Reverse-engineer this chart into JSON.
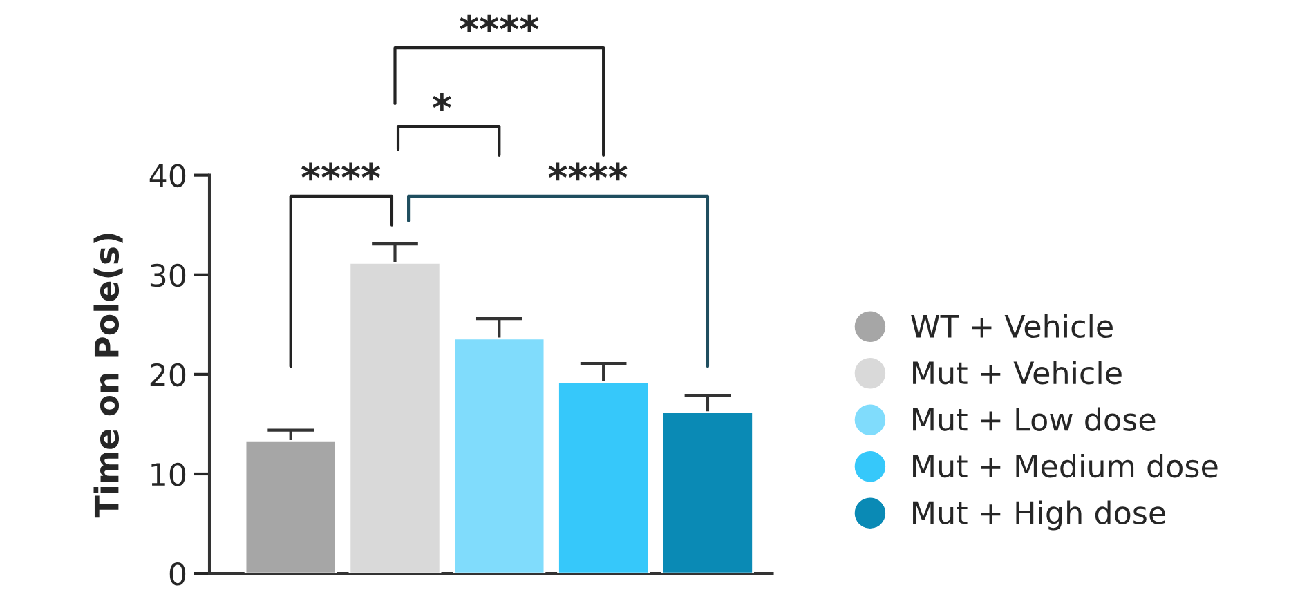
{
  "chart_data": {
    "type": "bar",
    "ylabel": "Time on Pole(s)",
    "categories": [
      null,
      null,
      null,
      null,
      null
    ],
    "series": [
      {
        "name": "WT + Vehicle",
        "color": "#a6a6a6",
        "values": [
          13.3,
          null,
          null,
          null,
          null
        ],
        "errors": [
          1.1,
          null,
          null,
          null,
          null
        ]
      },
      {
        "name": "Mut + Vehicle",
        "color": "#d9d9d9",
        "values": [
          null,
          31.2,
          null,
          null,
          null
        ],
        "errors": [
          null,
          1.9,
          null,
          null,
          null
        ]
      },
      {
        "name": "Mut + Low dose",
        "color": "#80dcfc",
        "values": [
          null,
          null,
          23.6,
          null,
          null
        ],
        "errors": [
          null,
          null,
          2.0,
          null,
          null
        ]
      },
      {
        "name": "Mut + Medium dose",
        "color": "#36c8fa",
        "values": [
          null,
          null,
          null,
          19.2,
          null
        ],
        "errors": [
          null,
          null,
          null,
          1.9,
          null
        ]
      },
      {
        "name": "Mut + High dose",
        "color": "#0a8ab5",
        "values": [
          null,
          null,
          null,
          null,
          16.2
        ],
        "errors": [
          null,
          null,
          null,
          null,
          1.7
        ]
      }
    ],
    "ylim": [
      0,
      40
    ],
    "yticks": [
      0,
      10,
      20,
      30,
      40
    ],
    "tick_labels": "y",
    "legend": "right",
    "grid": false,
    "annotations": [
      "****",
      "****",
      "*",
      "****"
    ]
  }
}
